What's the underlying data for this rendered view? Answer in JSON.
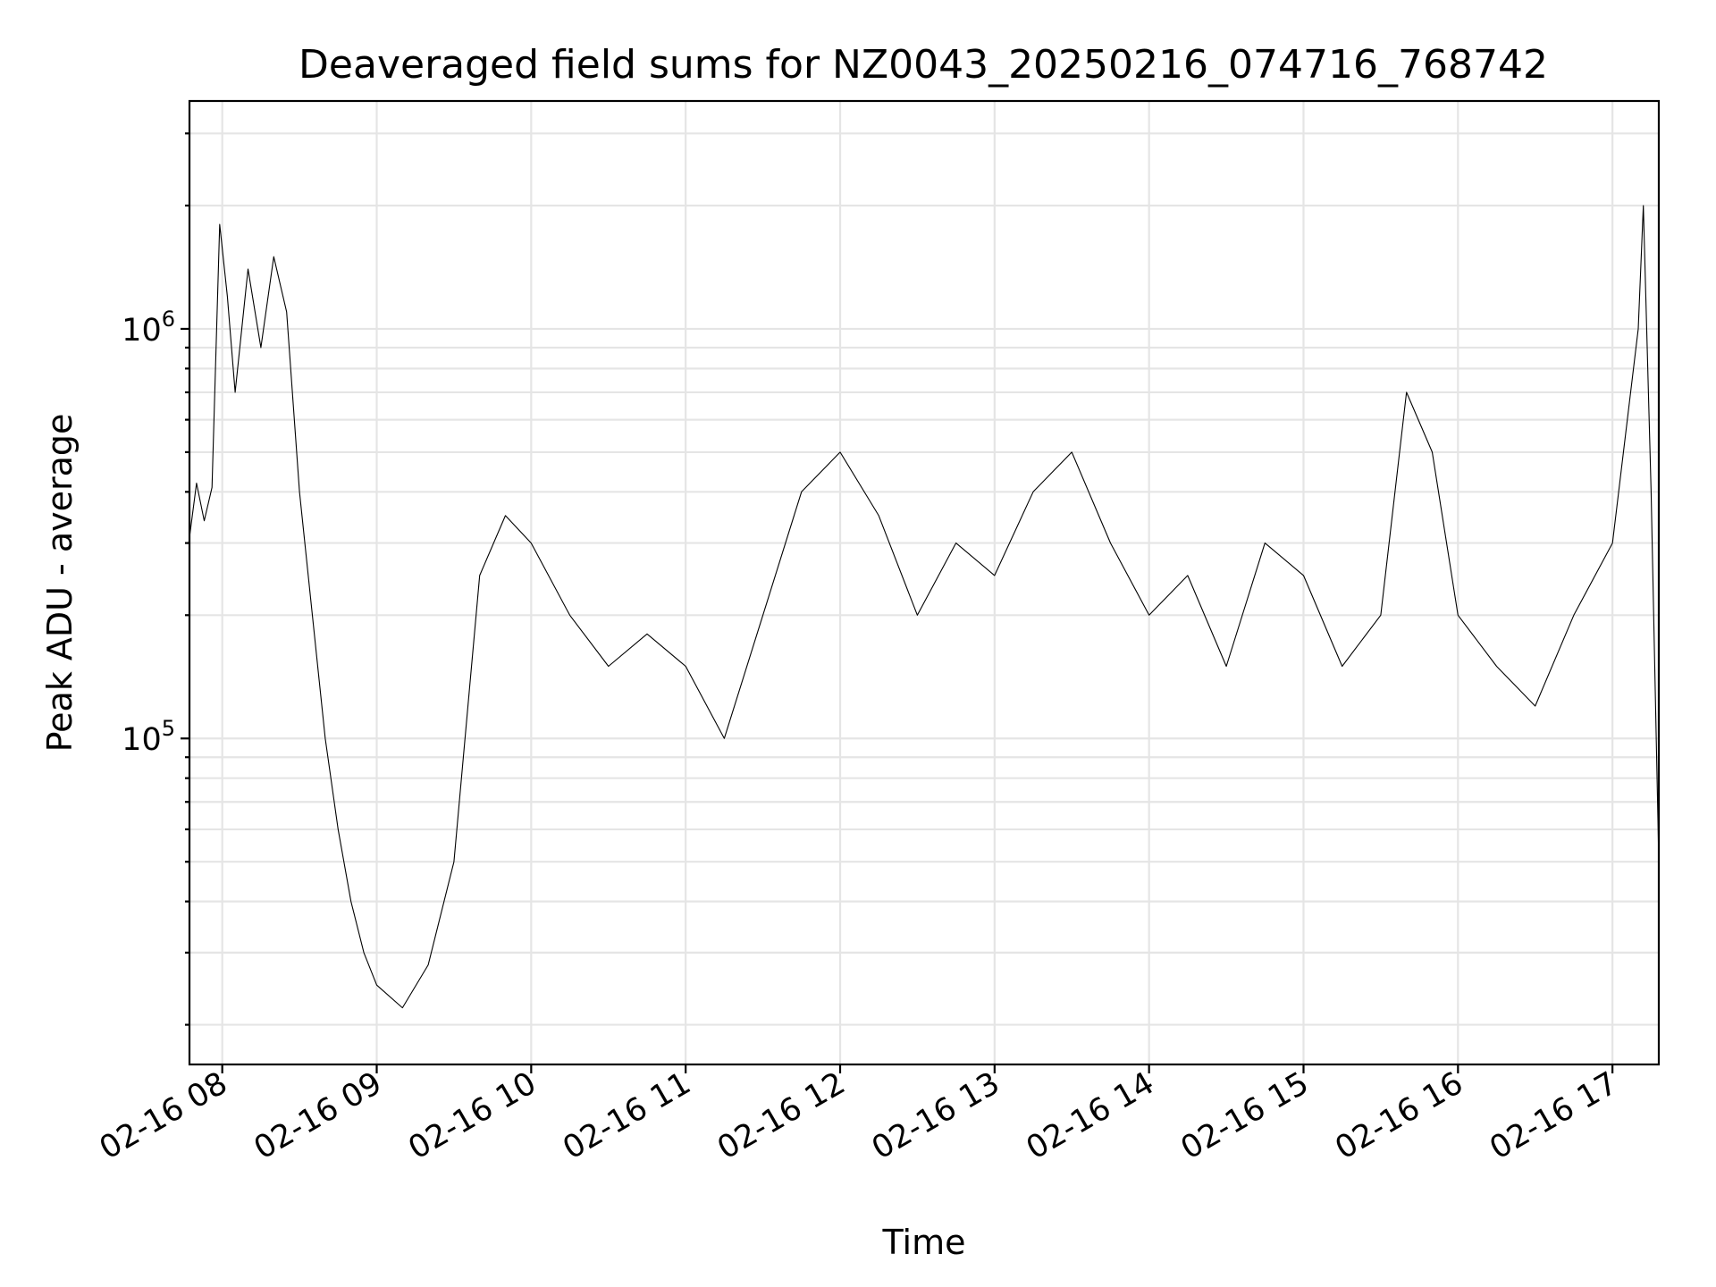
{
  "chart_data": {
    "type": "line",
    "title": "Deaveraged field sums for NZ0043_20250216_074716_768742",
    "xlabel": "Time",
    "ylabel": "Peak ADU - average",
    "x_ticks": [
      "02-16 08",
      "02-16 09",
      "02-16 10",
      "02-16 11",
      "02-16 12",
      "02-16 13",
      "02-16 14",
      "02-16 15",
      "02-16 16",
      "02-16 17"
    ],
    "y_scale": "log",
    "y_ticks": [
      {
        "value": 100000,
        "base": "10",
        "exp": "5"
      },
      {
        "value": 1000000,
        "base": "10",
        "exp": "6"
      }
    ],
    "xlim": [
      "2025-02-16T07:47:16",
      "2025-02-16T17:18:00"
    ],
    "ylim": [
      16000,
      3600000
    ],
    "grid": true,
    "line_color": "#000000",
    "series": [
      {
        "points": [
          [
            "2025-02-16T07:47",
            300000
          ],
          [
            "2025-02-16T07:50",
            420000
          ],
          [
            "2025-02-16T07:53",
            340000
          ],
          [
            "2025-02-16T07:56",
            410000
          ],
          [
            "2025-02-16T07:59",
            1800000
          ],
          [
            "2025-02-16T08:02",
            1200000
          ],
          [
            "2025-02-16T08:05",
            700000
          ],
          [
            "2025-02-16T08:10",
            1400000
          ],
          [
            "2025-02-16T08:15",
            900000
          ],
          [
            "2025-02-16T08:20",
            1500000
          ],
          [
            "2025-02-16T08:25",
            1100000
          ],
          [
            "2025-02-16T08:30",
            400000
          ],
          [
            "2025-02-16T08:35",
            200000
          ],
          [
            "2025-02-16T08:40",
            100000
          ],
          [
            "2025-02-16T08:45",
            60000
          ],
          [
            "2025-02-16T08:50",
            40000
          ],
          [
            "2025-02-16T08:55",
            30000
          ],
          [
            "2025-02-16T09:00",
            25000
          ],
          [
            "2025-02-16T09:10",
            22000
          ],
          [
            "2025-02-16T09:20",
            28000
          ],
          [
            "2025-02-16T09:30",
            50000
          ],
          [
            "2025-02-16T09:40",
            250000
          ],
          [
            "2025-02-16T09:50",
            350000
          ],
          [
            "2025-02-16T10:00",
            300000
          ],
          [
            "2025-02-16T10:15",
            200000
          ],
          [
            "2025-02-16T10:30",
            150000
          ],
          [
            "2025-02-16T10:45",
            180000
          ],
          [
            "2025-02-16T11:00",
            150000
          ],
          [
            "2025-02-16T11:15",
            100000
          ],
          [
            "2025-02-16T11:30",
            200000
          ],
          [
            "2025-02-16T11:45",
            400000
          ],
          [
            "2025-02-16T12:00",
            500000
          ],
          [
            "2025-02-16T12:15",
            350000
          ],
          [
            "2025-02-16T12:30",
            200000
          ],
          [
            "2025-02-16T12:45",
            300000
          ],
          [
            "2025-02-16T13:00",
            250000
          ],
          [
            "2025-02-16T13:15",
            400000
          ],
          [
            "2025-02-16T13:30",
            500000
          ],
          [
            "2025-02-16T13:45",
            300000
          ],
          [
            "2025-02-16T14:00",
            200000
          ],
          [
            "2025-02-16T14:15",
            250000
          ],
          [
            "2025-02-16T14:30",
            150000
          ],
          [
            "2025-02-16T14:45",
            300000
          ],
          [
            "2025-02-16T15:00",
            250000
          ],
          [
            "2025-02-16T15:15",
            150000
          ],
          [
            "2025-02-16T15:30",
            200000
          ],
          [
            "2025-02-16T15:40",
            700000
          ],
          [
            "2025-02-16T15:50",
            500000
          ],
          [
            "2025-02-16T16:00",
            200000
          ],
          [
            "2025-02-16T16:15",
            150000
          ],
          [
            "2025-02-16T16:30",
            120000
          ],
          [
            "2025-02-16T16:45",
            200000
          ],
          [
            "2025-02-16T17:00",
            300000
          ],
          [
            "2025-02-16T17:10",
            1000000
          ],
          [
            "2025-02-16T17:12",
            2000000
          ],
          [
            "2025-02-16T17:15",
            400000
          ],
          [
            "2025-02-16T17:18",
            50000
          ]
        ]
      }
    ]
  }
}
